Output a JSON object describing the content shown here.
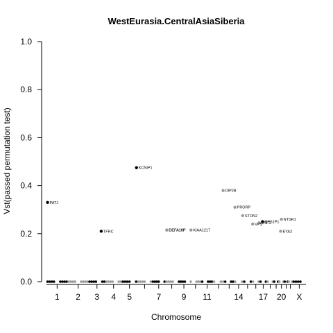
{
  "chart_data": {
    "type": "scatter",
    "title": "WestEurasia.CentralAsiaSiberia",
    "xlabel": "Chromosome",
    "ylabel": "Vst(passed permutation test)",
    "ylim": [
      0,
      1
    ],
    "yticks": [
      "0.0",
      "0.2",
      "0.4",
      "0.6",
      "0.8",
      "1.0"
    ],
    "chromosomes": [
      "1",
      "2",
      "3",
      "4",
      "5",
      "6",
      "7",
      "8",
      "9",
      "10",
      "11",
      "12",
      "13",
      "14",
      "15",
      "16",
      "17",
      "18",
      "19",
      "20",
      "21",
      "22",
      "X"
    ],
    "chrom_tick_labels": [
      "1",
      "2",
      "3",
      "4",
      "5",
      "7",
      "9",
      "11",
      "14",
      "17",
      "20",
      "X"
    ],
    "grid": false,
    "colors": {
      "odd": "#000000",
      "even": "#999999"
    },
    "labeled_points": [
      {
        "gene": "PATJ",
        "chrom": "1",
        "pos": 0.05,
        "value": 0.33
      },
      {
        "gene": "TFRC",
        "chrom": "3",
        "pos": 0.75,
        "value": 0.21
      },
      {
        "gene": "KCNIP1",
        "chrom": "5",
        "pos": 0.95,
        "value": 0.475
      },
      {
        "gene": "DEFA10P",
        "chrom": "8",
        "pos": 0.1,
        "value": 0.215
      },
      {
        "gene": "DEFA10P",
        "chrom": "8",
        "pos": 0.1,
        "value": 0.215
      },
      {
        "gene": "KIAA1217",
        "chrom": "10",
        "pos": 0.1,
        "value": 0.215
      },
      {
        "gene": "DIP2B",
        "chrom": "12",
        "pos": 0.9,
        "value": 0.38
      },
      {
        "gene": "PRORP",
        "chrom": "14",
        "pos": 0.1,
        "value": 0.31
      },
      {
        "gene": "STON2",
        "chrom": "14",
        "pos": 0.95,
        "value": 0.275
      },
      {
        "gene": "VPS",
        "chrom": "16",
        "pos": 0.1,
        "value": 0.24
      },
      {
        "gene": "ZNF1",
        "chrom": "16",
        "pos": 0.95,
        "value": 0.245
      },
      {
        "gene": "RPS1P1",
        "chrom": "17",
        "pos": 0.4,
        "value": 0.25
      },
      {
        "gene": "NTSR1",
        "chrom": "20",
        "pos": 0.5,
        "value": 0.26
      },
      {
        "gene": "EYA2",
        "chrom": "20",
        "pos": 0.35,
        "value": 0.21
      }
    ],
    "baseline_value": 0.0
  }
}
